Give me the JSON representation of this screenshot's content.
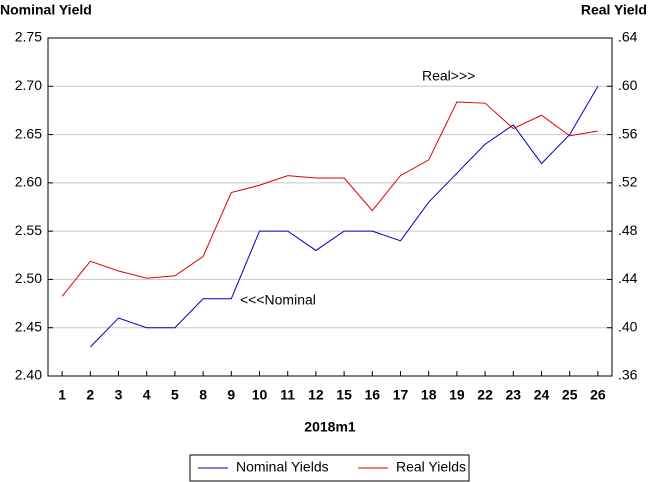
{
  "chart_data": {
    "type": "line",
    "y_label": "Nominal Yield",
    "y2_label": "Real Yield",
    "x_label": "2018m1",
    "annotations": [
      "Real>>>",
      "<<<Nominal"
    ],
    "categories": [
      "1",
      "2",
      "3",
      "4",
      "5",
      "8",
      "9",
      "10",
      "11",
      "12",
      "15",
      "16",
      "17",
      "18",
      "19",
      "22",
      "23",
      "24",
      "25",
      "26"
    ],
    "series": [
      {
        "name": "Nominal Yields",
        "color": "#0000c0",
        "values": [
          null,
          2.43,
          2.46,
          2.45,
          2.45,
          2.48,
          2.48,
          2.55,
          2.55,
          2.53,
          2.55,
          2.55,
          2.54,
          2.58,
          2.61,
          2.64,
          2.66,
          2.62,
          2.65,
          2.7
        ]
      },
      {
        "name": "Real Yields",
        "color": "#e00000",
        "axis": "y2",
        "values": [
          0.426,
          0.455,
          0.447,
          0.441,
          0.443,
          0.459,
          0.512,
          0.518,
          0.526,
          0.524,
          0.524,
          0.497,
          0.526,
          0.539,
          0.587,
          0.586,
          0.565,
          0.576,
          0.559,
          0.563
        ]
      }
    ],
    "ylim": [
      2.4,
      2.75
    ],
    "yticks": [
      {
        "value": 2.4,
        "label": "2.40"
      },
      2.45,
      {
        "value": 2.5,
        "label": "2.50"
      },
      2.55,
      {
        "value": 2.6,
        "label": "2.60"
      },
      2.65,
      {
        "value": 2.7,
        "label": "2.70"
      },
      2.75
    ],
    "y2lim": [
      0.36,
      0.64
    ],
    "y2ticks": [
      {
        "value": 0.36,
        "label": ".36"
      },
      {
        "value": 0.4,
        "label": ".40"
      },
      {
        "value": 0.44,
        "label": ".44"
      },
      {
        "value": 0.48,
        "label": ".48"
      },
      {
        "value": 0.52,
        "label": ".52"
      },
      {
        "value": 0.56,
        "label": ".56"
      },
      {
        "value": 0.6,
        "label": ".60"
      },
      {
        "value": 0.64,
        "label": ".64"
      }
    ],
    "grid": true
  }
}
